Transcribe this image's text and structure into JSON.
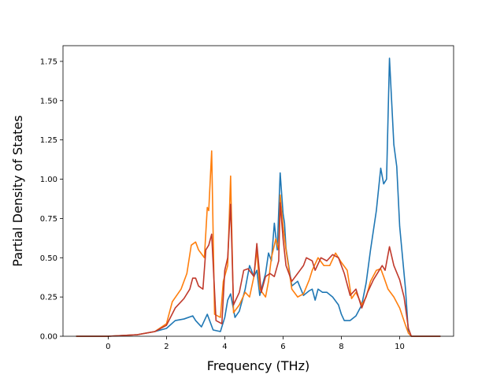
{
  "chart_data": {
    "type": "line",
    "title": "",
    "xlabel": "Frequency (THz)",
    "ylabel": "Partial Density of States",
    "xlim": [
      -1.55,
      11.85
    ],
    "ylim": [
      0,
      1.85
    ],
    "xticks": [
      0,
      2,
      4,
      6,
      8,
      10
    ],
    "yticks": [
      0.0,
      0.25,
      0.5,
      0.75,
      1.0,
      1.25,
      1.5,
      1.75
    ],
    "xtick_labels": [
      "0",
      "2",
      "4",
      "6",
      "8",
      "10"
    ],
    "ytick_labels": [
      "0.00",
      "0.25",
      "0.50",
      "0.75",
      "1.00",
      "1.25",
      "1.50",
      "1.75"
    ],
    "grid": false,
    "legend": "none",
    "series": [
      {
        "color": "#1f77b4",
        "points": [
          [
            -1.1,
            0
          ],
          [
            0,
            0
          ],
          [
            1,
            0.01
          ],
          [
            1.6,
            0.03
          ],
          [
            2,
            0.05
          ],
          [
            2.3,
            0.1
          ],
          [
            2.6,
            0.11
          ],
          [
            2.9,
            0.13
          ],
          [
            3.0,
            0.1
          ],
          [
            3.2,
            0.06
          ],
          [
            3.4,
            0.14
          ],
          [
            3.6,
            0.04
          ],
          [
            3.85,
            0.03
          ],
          [
            4.0,
            0.12
          ],
          [
            4.1,
            0.23
          ],
          [
            4.2,
            0.27
          ],
          [
            4.35,
            0.12
          ],
          [
            4.5,
            0.16
          ],
          [
            4.7,
            0.3
          ],
          [
            4.85,
            0.45
          ],
          [
            5.0,
            0.38
          ],
          [
            5.1,
            0.42
          ],
          [
            5.2,
            0.26
          ],
          [
            5.4,
            0.4
          ],
          [
            5.5,
            0.53
          ],
          [
            5.6,
            0.48
          ],
          [
            5.7,
            0.72
          ],
          [
            5.8,
            0.55
          ],
          [
            5.9,
            1.04
          ],
          [
            6.0,
            0.78
          ],
          [
            6.05,
            0.72
          ],
          [
            6.1,
            0.56
          ],
          [
            6.3,
            0.32
          ],
          [
            6.5,
            0.35
          ],
          [
            6.7,
            0.26
          ],
          [
            6.9,
            0.29
          ],
          [
            7.0,
            0.3
          ],
          [
            7.1,
            0.23
          ],
          [
            7.2,
            0.3
          ],
          [
            7.35,
            0.28
          ],
          [
            7.5,
            0.28
          ],
          [
            7.7,
            0.25
          ],
          [
            7.9,
            0.2
          ],
          [
            8.0,
            0.14
          ],
          [
            8.1,
            0.1
          ],
          [
            8.3,
            0.1
          ],
          [
            8.5,
            0.13
          ],
          [
            8.7,
            0.2
          ],
          [
            8.85,
            0.34
          ],
          [
            9.0,
            0.55
          ],
          [
            9.2,
            0.8
          ],
          [
            9.35,
            1.07
          ],
          [
            9.45,
            0.97
          ],
          [
            9.55,
            1.0
          ],
          [
            9.65,
            1.77
          ],
          [
            9.8,
            1.22
          ],
          [
            9.9,
            1.08
          ],
          [
            10.0,
            0.7
          ],
          [
            10.1,
            0.5
          ],
          [
            10.2,
            0.3
          ],
          [
            10.3,
            0.02
          ],
          [
            10.4,
            0
          ],
          [
            11.4,
            0
          ]
        ]
      },
      {
        "color": "#ff7f0e",
        "points": [
          [
            -1.1,
            0
          ],
          [
            0,
            0
          ],
          [
            1,
            0.01
          ],
          [
            1.6,
            0.03
          ],
          [
            2,
            0.08
          ],
          [
            2.2,
            0.22
          ],
          [
            2.5,
            0.3
          ],
          [
            2.7,
            0.4
          ],
          [
            2.85,
            0.58
          ],
          [
            3.0,
            0.6
          ],
          [
            3.1,
            0.55
          ],
          [
            3.3,
            0.5
          ],
          [
            3.4,
            0.82
          ],
          [
            3.45,
            0.8
          ],
          [
            3.55,
            1.18
          ],
          [
            3.65,
            0.14
          ],
          [
            3.85,
            0.12
          ],
          [
            3.95,
            0.35
          ],
          [
            4.1,
            0.45
          ],
          [
            4.2,
            1.02
          ],
          [
            4.3,
            0.15
          ],
          [
            4.5,
            0.2
          ],
          [
            4.7,
            0.28
          ],
          [
            4.85,
            0.25
          ],
          [
            5.0,
            0.38
          ],
          [
            5.1,
            0.55
          ],
          [
            5.2,
            0.3
          ],
          [
            5.4,
            0.25
          ],
          [
            5.5,
            0.35
          ],
          [
            5.6,
            0.5
          ],
          [
            5.75,
            0.62
          ],
          [
            5.85,
            0.55
          ],
          [
            5.9,
            0.9
          ],
          [
            6.0,
            0.7
          ],
          [
            6.1,
            0.55
          ],
          [
            6.3,
            0.3
          ],
          [
            6.5,
            0.25
          ],
          [
            6.7,
            0.27
          ],
          [
            6.9,
            0.36
          ],
          [
            7.0,
            0.42
          ],
          [
            7.2,
            0.5
          ],
          [
            7.4,
            0.45
          ],
          [
            7.6,
            0.45
          ],
          [
            7.8,
            0.53
          ],
          [
            8.0,
            0.47
          ],
          [
            8.2,
            0.42
          ],
          [
            8.35,
            0.24
          ],
          [
            8.5,
            0.28
          ],
          [
            8.7,
            0.2
          ],
          [
            8.85,
            0.25
          ],
          [
            9.0,
            0.35
          ],
          [
            9.2,
            0.42
          ],
          [
            9.35,
            0.43
          ],
          [
            9.45,
            0.38
          ],
          [
            9.6,
            0.3
          ],
          [
            9.8,
            0.25
          ],
          [
            10.0,
            0.18
          ],
          [
            10.2,
            0.07
          ],
          [
            10.3,
            0.02
          ],
          [
            10.4,
            0
          ],
          [
            11.4,
            0
          ]
        ]
      },
      {
        "color": "#c0392b",
        "points": [
          [
            -1.1,
            0
          ],
          [
            0,
            0
          ],
          [
            1,
            0.01
          ],
          [
            1.6,
            0.03
          ],
          [
            2,
            0.07
          ],
          [
            2.3,
            0.18
          ],
          [
            2.6,
            0.24
          ],
          [
            2.8,
            0.3
          ],
          [
            2.9,
            0.37
          ],
          [
            3.0,
            0.37
          ],
          [
            3.1,
            0.32
          ],
          [
            3.25,
            0.3
          ],
          [
            3.35,
            0.55
          ],
          [
            3.45,
            0.58
          ],
          [
            3.55,
            0.65
          ],
          [
            3.7,
            0.1
          ],
          [
            3.9,
            0.08
          ],
          [
            4.0,
            0.42
          ],
          [
            4.1,
            0.5
          ],
          [
            4.2,
            0.84
          ],
          [
            4.3,
            0.2
          ],
          [
            4.5,
            0.28
          ],
          [
            4.65,
            0.42
          ],
          [
            4.8,
            0.43
          ],
          [
            5.0,
            0.38
          ],
          [
            5.1,
            0.59
          ],
          [
            5.25,
            0.28
          ],
          [
            5.4,
            0.38
          ],
          [
            5.55,
            0.4
          ],
          [
            5.7,
            0.38
          ],
          [
            5.85,
            0.48
          ],
          [
            5.9,
            0.85
          ],
          [
            6.0,
            0.62
          ],
          [
            6.1,
            0.45
          ],
          [
            6.3,
            0.35
          ],
          [
            6.5,
            0.4
          ],
          [
            6.7,
            0.45
          ],
          [
            6.8,
            0.5
          ],
          [
            7.0,
            0.48
          ],
          [
            7.1,
            0.42
          ],
          [
            7.3,
            0.5
          ],
          [
            7.5,
            0.48
          ],
          [
            7.7,
            0.52
          ],
          [
            7.9,
            0.5
          ],
          [
            8.1,
            0.4
          ],
          [
            8.3,
            0.26
          ],
          [
            8.5,
            0.3
          ],
          [
            8.7,
            0.18
          ],
          [
            8.9,
            0.28
          ],
          [
            9.1,
            0.36
          ],
          [
            9.3,
            0.42
          ],
          [
            9.4,
            0.45
          ],
          [
            9.5,
            0.42
          ],
          [
            9.65,
            0.57
          ],
          [
            9.8,
            0.45
          ],
          [
            10.0,
            0.36
          ],
          [
            10.15,
            0.25
          ],
          [
            10.3,
            0.05
          ],
          [
            10.4,
            0
          ],
          [
            11.4,
            0
          ]
        ]
      }
    ]
  }
}
